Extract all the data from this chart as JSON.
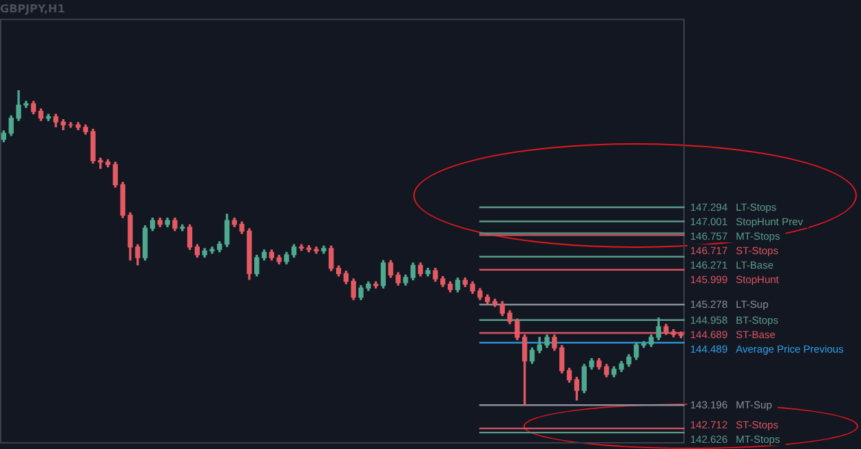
{
  "chart_data": {
    "type": "candlestick",
    "title": "GBPJPY,H1",
    "categories": [
      null,
      null,
      null,
      null,
      null,
      null,
      null,
      null,
      null,
      null,
      null,
      null,
      null,
      null,
      null,
      null,
      null,
      null,
      null,
      null,
      null,
      null,
      null,
      null,
      null,
      null,
      null,
      null,
      null,
      null,
      null,
      null,
      null,
      null,
      null,
      null,
      null,
      null,
      null,
      null,
      null,
      null,
      null,
      null,
      null,
      null,
      null,
      null,
      null,
      null,
      null,
      null,
      null,
      null,
      null,
      null,
      null,
      null,
      null,
      null,
      null,
      null,
      null,
      null,
      null,
      null,
      null,
      null,
      null,
      null,
      null,
      null,
      null,
      null,
      null,
      null,
      null,
      null,
      null,
      null,
      null,
      null,
      null,
      null,
      null,
      null,
      null,
      null,
      null,
      null,
      null,
      null
    ],
    "ohlc": [
      [
        148.7,
        148.88,
        148.65,
        148.83
      ],
      [
        148.83,
        149.19,
        148.78,
        149.14
      ],
      [
        149.14,
        149.71,
        149.09,
        149.41
      ],
      [
        149.41,
        149.49,
        149.36,
        149.44
      ],
      [
        149.44,
        149.49,
        149.23,
        149.28
      ],
      [
        149.28,
        149.33,
        149.09,
        149.14
      ],
      [
        149.14,
        149.22,
        149.09,
        149.17
      ],
      [
        149.17,
        149.22,
        148.96,
        149.06
      ],
      [
        149.06,
        149.11,
        148.9,
        149.0
      ],
      [
        149.0,
        149.05,
        148.95,
        149.0
      ],
      [
        149.0,
        149.05,
        148.9,
        148.95
      ],
      [
        148.95,
        149.0,
        148.81,
        148.86
      ],
      [
        148.86,
        148.91,
        148.21,
        148.26
      ],
      [
        148.26,
        148.31,
        148.1,
        148.23
      ],
      [
        148.23,
        148.28,
        148.13,
        148.18
      ],
      [
        148.18,
        148.23,
        147.71,
        147.76
      ],
      [
        147.76,
        147.81,
        147.08,
        147.13
      ],
      [
        147.13,
        147.18,
        146.2,
        146.47
      ],
      [
        146.47,
        146.52,
        146.1,
        146.25
      ],
      [
        146.25,
        146.91,
        146.2,
        146.86
      ],
      [
        146.86,
        147.07,
        146.81,
        147.02
      ],
      [
        147.02,
        147.07,
        146.89,
        146.94
      ],
      [
        146.94,
        147.07,
        146.89,
        147.02
      ],
      [
        147.02,
        147.07,
        146.81,
        146.86
      ],
      [
        146.86,
        146.93,
        146.81,
        146.88
      ],
      [
        146.88,
        146.93,
        146.42,
        146.47
      ],
      [
        146.47,
        146.52,
        146.26,
        146.31
      ],
      [
        146.31,
        146.44,
        146.26,
        146.39
      ],
      [
        146.39,
        146.47,
        146.34,
        146.42
      ],
      [
        146.42,
        146.58,
        146.37,
        146.53
      ],
      [
        146.53,
        147.15,
        146.48,
        147.02
      ],
      [
        147.02,
        147.07,
        146.89,
        146.94
      ],
      [
        146.94,
        146.99,
        146.75,
        146.8
      ],
      [
        146.8,
        146.85,
        145.8,
        145.92
      ],
      [
        145.92,
        146.3,
        145.87,
        146.25
      ],
      [
        146.25,
        146.41,
        146.2,
        146.36
      ],
      [
        146.36,
        146.41,
        146.2,
        146.25
      ],
      [
        146.25,
        146.3,
        146.12,
        146.17
      ],
      [
        146.17,
        146.36,
        146.12,
        146.31
      ],
      [
        146.31,
        146.52,
        146.26,
        146.47
      ],
      [
        146.47,
        146.52,
        146.4,
        146.45
      ],
      [
        146.45,
        146.5,
        146.37,
        146.42
      ],
      [
        146.42,
        146.47,
        146.34,
        146.39
      ],
      [
        146.39,
        146.49,
        146.34,
        146.44
      ],
      [
        146.44,
        146.49,
        145.98,
        146.03
      ],
      [
        146.03,
        146.08,
        145.87,
        145.92
      ],
      [
        145.92,
        145.97,
        145.71,
        145.76
      ],
      [
        145.76,
        145.81,
        145.38,
        145.43
      ],
      [
        145.43,
        145.67,
        145.38,
        145.62
      ],
      [
        145.62,
        145.75,
        145.57,
        145.7
      ],
      [
        145.7,
        145.75,
        145.62,
        145.67
      ],
      [
        145.67,
        146.19,
        145.62,
        146.14
      ],
      [
        146.14,
        146.19,
        145.84,
        145.89
      ],
      [
        145.89,
        145.94,
        145.68,
        145.73
      ],
      [
        145.73,
        145.89,
        145.68,
        145.84
      ],
      [
        145.84,
        146.14,
        145.79,
        146.09
      ],
      [
        146.09,
        146.14,
        145.87,
        145.92
      ],
      [
        145.92,
        146.03,
        145.87,
        145.98
      ],
      [
        145.98,
        146.03,
        145.76,
        145.81
      ],
      [
        145.81,
        145.86,
        145.65,
        145.7
      ],
      [
        145.7,
        145.75,
        145.54,
        145.59
      ],
      [
        145.59,
        145.83,
        145.54,
        145.78
      ],
      [
        145.78,
        145.83,
        145.65,
        145.7
      ],
      [
        145.7,
        145.75,
        145.51,
        145.56
      ],
      [
        145.56,
        145.61,
        145.38,
        145.43
      ],
      [
        145.43,
        145.48,
        145.29,
        145.34
      ],
      [
        145.34,
        145.39,
        145.24,
        145.29
      ],
      [
        145.29,
        145.34,
        145.05,
        145.1
      ],
      [
        145.1,
        145.15,
        144.88,
        144.93
      ],
      [
        144.93,
        144.98,
        144.55,
        144.6
      ],
      [
        144.6,
        144.65,
        143.2,
        144.11
      ],
      [
        144.11,
        144.38,
        144.06,
        144.33
      ],
      [
        144.33,
        144.6,
        144.28,
        144.44
      ],
      [
        144.44,
        144.65,
        144.39,
        144.6
      ],
      [
        144.6,
        144.65,
        144.33,
        144.38
      ],
      [
        144.38,
        144.43,
        143.86,
        143.91
      ],
      [
        143.91,
        143.96,
        143.67,
        143.72
      ],
      [
        143.72,
        143.77,
        143.3,
        143.5
      ],
      [
        143.5,
        144.04,
        143.45,
        143.99
      ],
      [
        143.99,
        144.16,
        143.94,
        144.11
      ],
      [
        144.11,
        144.16,
        143.94,
        143.99
      ],
      [
        143.99,
        144.04,
        143.78,
        143.83
      ],
      [
        143.83,
        143.99,
        143.78,
        143.94
      ],
      [
        143.94,
        144.1,
        143.89,
        144.05
      ],
      [
        144.05,
        144.24,
        144.0,
        144.19
      ],
      [
        144.19,
        144.49,
        144.14,
        144.44
      ],
      [
        144.44,
        144.51,
        144.39,
        144.46
      ],
      [
        144.46,
        144.65,
        144.41,
        144.6
      ],
      [
        144.6,
        145.0,
        144.55,
        144.82
      ],
      [
        144.82,
        144.87,
        144.66,
        144.71
      ],
      [
        144.71,
        144.76,
        144.61,
        144.66
      ],
      [
        144.66,
        144.71,
        144.59,
        144.64
      ]
    ],
    "colors": [
      "#4fa98f",
      "#4fa98f",
      "#4fa98f",
      "#4fa98f",
      "#e45a63",
      "#e45a63",
      "#4fa98f",
      "#e45a63",
      "#e45a63",
      "#e45a63",
      "#e45a63",
      "#e45a63",
      "#e45a63",
      "#e45a63",
      "#e45a63",
      "#e45a63",
      "#e45a63",
      "#e45a63",
      "#e45a63",
      "#4fa98f",
      "#4fa98f",
      "#e45a63",
      "#4fa98f",
      "#e45a63",
      "#4fa98f",
      "#e45a63",
      "#e45a63",
      "#4fa98f",
      "#4fa98f",
      "#4fa98f",
      "#4fa98f",
      "#e45a63",
      "#e45a63",
      "#e45a63",
      "#4fa98f",
      "#4fa98f",
      "#e45a63",
      "#e45a63",
      "#4fa98f",
      "#4fa98f",
      "#e45a63",
      "#e45a63",
      "#e45a63",
      "#4fa98f",
      "#e45a63",
      "#e45a63",
      "#e45a63",
      "#e45a63",
      "#4fa98f",
      "#4fa98f",
      "#e45a63",
      "#4fa98f",
      "#e45a63",
      "#e45a63",
      "#4fa98f",
      "#4fa98f",
      "#e45a63",
      "#4fa98f",
      "#e45a63",
      "#e45a63",
      "#e45a63",
      "#4fa98f",
      "#e45a63",
      "#e45a63",
      "#e45a63",
      "#e45a63",
      "#e45a63",
      "#e45a63",
      "#e45a63",
      "#e45a63",
      "#e45a63",
      "#4fa98f",
      "#4fa98f",
      "#4fa98f",
      "#e45a63",
      "#e45a63",
      "#e45a63",
      "#e45a63",
      "#4fa98f",
      "#4fa98f",
      "#e45a63",
      "#e45a63",
      "#4fa98f",
      "#4fa98f",
      "#4fa98f",
      "#4fa98f",
      "#4fa98f",
      "#4fa98f",
      "#4fa98f",
      "#e45a63",
      "#e45a63",
      "#e45a63"
    ],
    "ylim": [
      142.4,
      151.2
    ],
    "tick_labels": false,
    "legend": false,
    "ref_lines": [
      {
        "axis": "y",
        "value": 147.294,
        "label": "147.294 LT-Stops",
        "color": "#5a9a88"
      },
      {
        "axis": "y",
        "value": 147.001,
        "label": "147.001 StopHunt Prev",
        "color": "#5a9a88"
      },
      {
        "axis": "y",
        "value": 146.757,
        "label": "146.757 MT-Stops",
        "color": "#5a9a88"
      },
      {
        "axis": "y",
        "value": 146.717,
        "label": "146.717 ST-Stops",
        "color": "#d9545f"
      },
      {
        "axis": "y",
        "value": 146.271,
        "label": "146.271 LT-Base",
        "color": "#5a9a88"
      },
      {
        "axis": "y",
        "value": 145.999,
        "label": "145.999 StopHunt",
        "color": "#d9545f"
      },
      {
        "axis": "y",
        "value": 145.278,
        "label": "145.278 LT-Sup",
        "color": "#8a8f98"
      },
      {
        "axis": "y",
        "value": 144.958,
        "label": "144.958 BT-Stops",
        "color": "#5a9a88"
      },
      {
        "axis": "y",
        "value": 144.689,
        "label": "144.689 ST-Base",
        "color": "#d9545f"
      },
      {
        "axis": "y",
        "value": 144.489,
        "label": "144.489 Average Price Previous",
        "color": "#2f9fe6"
      },
      {
        "axis": "y",
        "value": 143.196,
        "label": "143.196 MT-Sup",
        "color": "#8a8f98"
      },
      {
        "axis": "y",
        "value": 142.712,
        "label": "142.712 ST-Stops",
        "color": "#d9545f"
      },
      {
        "axis": "y",
        "value": 142.626,
        "label": "142.626 MT-Stops",
        "color": "#5a9a88"
      }
    ]
  }
}
